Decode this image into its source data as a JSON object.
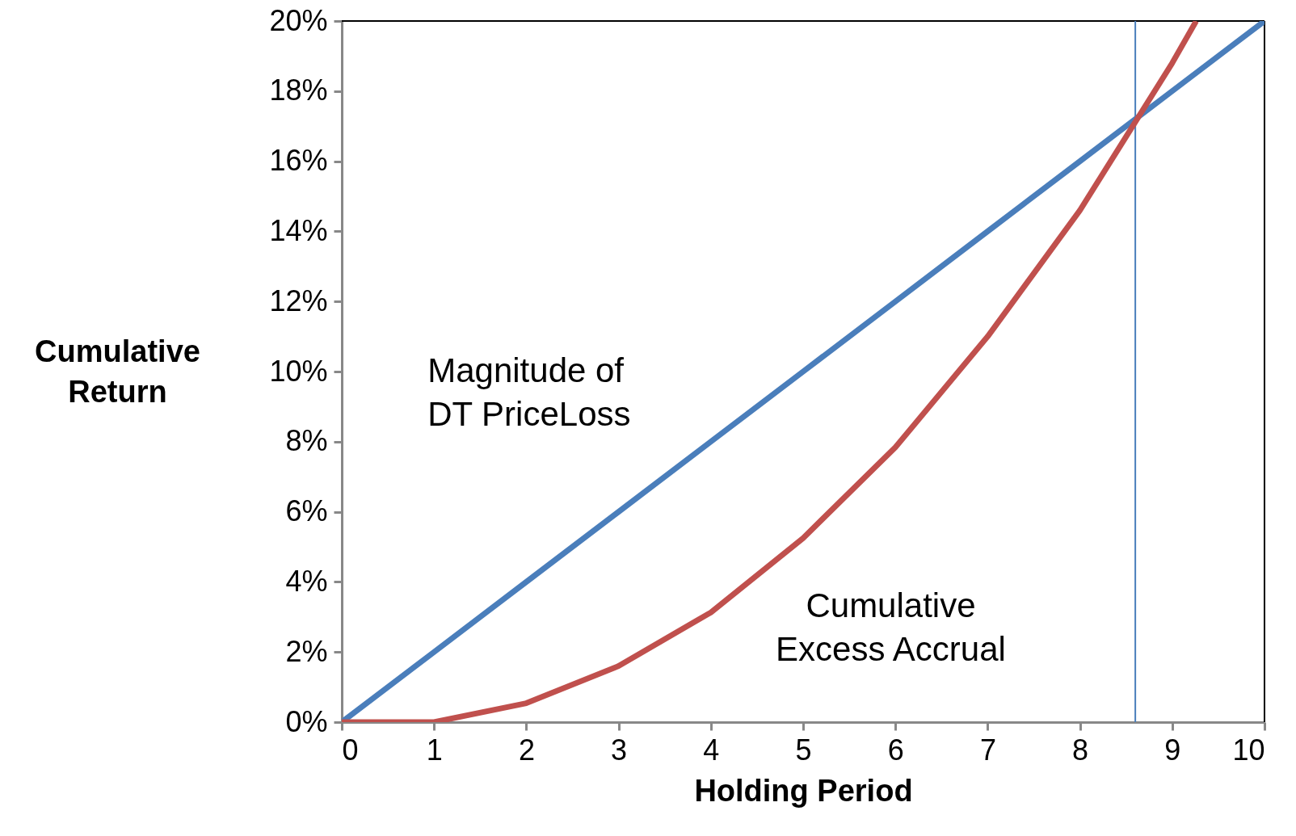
{
  "chart_data": {
    "type": "line",
    "xlabel": "Holding Period",
    "ylabel": "Cumulative Return",
    "x": [
      0,
      1,
      2,
      3,
      4,
      5,
      6,
      7,
      8,
      9,
      10
    ],
    "series": [
      {
        "color": "#4a7ebb",
        "values": [
          0,
          2,
          4,
          6,
          8,
          10,
          12,
          14,
          16,
          18,
          20
        ]
      },
      {
        "color": "#c0504d",
        "x": [
          0,
          1,
          2,
          3,
          4,
          5,
          6,
          7,
          8,
          9,
          9.26
        ],
        "values": [
          0,
          0,
          0.54,
          1.6,
          3.13,
          5.25,
          7.84,
          11.0,
          14.6,
          18.8,
          20
        ]
      }
    ],
    "xlim": [
      0,
      10
    ],
    "xticks": [
      0,
      1,
      2,
      3,
      4,
      5,
      6,
      7,
      8,
      9,
      10
    ],
    "ylim": [
      0,
      20
    ],
    "yticks": [
      {
        "value": 0,
        "label": "0%"
      },
      {
        "value": 2,
        "label": "2%"
      },
      {
        "value": 4,
        "label": "4%"
      },
      {
        "value": 6,
        "label": "6%"
      },
      {
        "value": 8,
        "label": "8%"
      },
      {
        "value": 10,
        "label": "10%"
      },
      {
        "value": 12,
        "label": "12%"
      },
      {
        "value": 14,
        "label": "14%"
      },
      {
        "value": 16,
        "label": "16%"
      },
      {
        "value": 18,
        "label": "18%"
      },
      {
        "value": 20,
        "label": "20%"
      }
    ],
    "ref_lines": [
      {
        "axis": "x",
        "value": 8.6,
        "color": "#4a7ebb"
      }
    ],
    "annotations": [
      "Magnitude of\nDT PriceLoss",
      "Cumulative\nExcess Accrual"
    ],
    "line_style": "solid",
    "marker": "none"
  }
}
